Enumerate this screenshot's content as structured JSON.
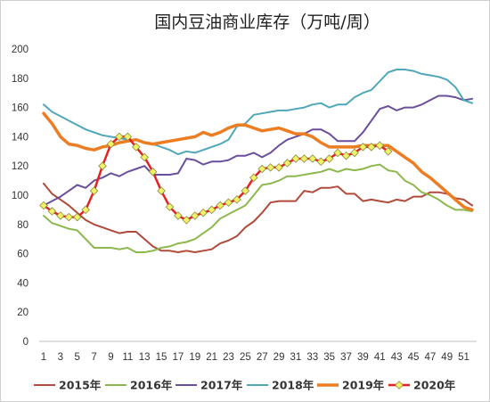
{
  "chart_data": {
    "type": "line",
    "title": "国内豆油商业库存（万吨/周）",
    "xlabel": "",
    "ylabel": "",
    "ylim": [
      0,
      200
    ],
    "yticks": [
      0,
      20,
      40,
      60,
      80,
      100,
      120,
      140,
      160,
      180,
      200
    ],
    "xlim": [
      1,
      52
    ],
    "xticks": [
      1,
      3,
      5,
      7,
      9,
      11,
      13,
      15,
      17,
      19,
      21,
      23,
      25,
      27,
      29,
      31,
      33,
      35,
      37,
      39,
      41,
      43,
      45,
      47,
      49,
      51
    ],
    "grid": false,
    "legend_position": "bottom",
    "series": [
      {
        "name": "2015年",
        "color": "#b04a3a",
        "width": 2,
        "marker": false,
        "x": [
          1,
          2,
          3,
          4,
          5,
          6,
          7,
          8,
          9,
          10,
          11,
          12,
          13,
          14,
          15,
          16,
          17,
          18,
          19,
          20,
          21,
          22,
          23,
          24,
          25,
          26,
          27,
          28,
          29,
          30,
          31,
          32,
          33,
          34,
          35,
          36,
          37,
          38,
          39,
          40,
          41,
          42,
          43,
          44,
          45,
          46,
          47,
          48,
          49,
          50,
          51,
          52
        ],
        "values": [
          108,
          101,
          97,
          93,
          88,
          83,
          80,
          78,
          76,
          74,
          75,
          75,
          70,
          65,
          62,
          62,
          61,
          62,
          61,
          62,
          63,
          67,
          69,
          72,
          78,
          82,
          88,
          95,
          96,
          96,
          96,
          103,
          102,
          105,
          105,
          106,
          101,
          101,
          96,
          97,
          96,
          95,
          97,
          96,
          99,
          99,
          102,
          102,
          101,
          98,
          97,
          93
        ]
      },
      {
        "name": "2016年",
        "color": "#8db84e",
        "width": 2,
        "marker": false,
        "x": [
          1,
          2,
          3,
          4,
          5,
          6,
          7,
          8,
          9,
          10,
          11,
          12,
          13,
          14,
          15,
          16,
          17,
          18,
          19,
          20,
          21,
          22,
          23,
          24,
          25,
          26,
          27,
          28,
          29,
          30,
          31,
          32,
          33,
          34,
          35,
          36,
          37,
          38,
          39,
          40,
          41,
          42,
          43,
          44,
          45,
          46,
          47,
          48,
          49,
          50,
          51,
          52
        ],
        "values": [
          86,
          81,
          79,
          77,
          76,
          70,
          64,
          64,
          64,
          63,
          64,
          61,
          61,
          62,
          64,
          65,
          67,
          68,
          70,
          74,
          78,
          84,
          87,
          90,
          93,
          100,
          107,
          108,
          110,
          113,
          113,
          114,
          115,
          116,
          118,
          116,
          118,
          117,
          118,
          120,
          121,
          117,
          116,
          110,
          107,
          102,
          100,
          97,
          93,
          90,
          90,
          89
        ]
      },
      {
        "name": "2017年",
        "color": "#6a4f9c",
        "width": 2,
        "marker": false,
        "x": [
          1,
          2,
          3,
          4,
          5,
          6,
          7,
          8,
          9,
          10,
          11,
          12,
          13,
          14,
          15,
          16,
          17,
          18,
          19,
          20,
          21,
          22,
          23,
          24,
          25,
          26,
          27,
          28,
          29,
          30,
          31,
          32,
          33,
          34,
          35,
          36,
          37,
          38,
          39,
          40,
          41,
          42,
          43,
          44,
          45,
          46,
          47,
          48,
          49,
          50,
          51,
          52
        ],
        "values": [
          93,
          96,
          99,
          103,
          107,
          105,
          110,
          112,
          115,
          113,
          116,
          118,
          120,
          114,
          114,
          114,
          115,
          125,
          124,
          121,
          123,
          123,
          124,
          127,
          127,
          129,
          126,
          129,
          134,
          138,
          140,
          142,
          145,
          145,
          142,
          137,
          137,
          137,
          143,
          151,
          159,
          161,
          158,
          160,
          160,
          162,
          165,
          168,
          168,
          167,
          165,
          166
        ]
      },
      {
        "name": "2018年",
        "color": "#4fa7b9",
        "width": 2,
        "marker": false,
        "x": [
          1,
          2,
          3,
          4,
          5,
          6,
          7,
          8,
          9,
          10,
          11,
          12,
          13,
          14,
          15,
          16,
          17,
          18,
          19,
          20,
          21,
          22,
          23,
          24,
          25,
          26,
          27,
          28,
          29,
          30,
          31,
          32,
          33,
          34,
          35,
          36,
          37,
          38,
          39,
          40,
          41,
          42,
          43,
          44,
          45,
          46,
          47,
          48,
          49,
          50,
          51,
          52
        ],
        "values": [
          162,
          157,
          154,
          151,
          148,
          145,
          143,
          141,
          140,
          139,
          138,
          138,
          136,
          135,
          133,
          131,
          128,
          130,
          129,
          131,
          133,
          135,
          138,
          147,
          149,
          155,
          156,
          157,
          158,
          158,
          159,
          160,
          162,
          163,
          160,
          162,
          162,
          167,
          170,
          172,
          178,
          184,
          186,
          186,
          185,
          183,
          182,
          181,
          179,
          174,
          165,
          163
        ]
      },
      {
        "name": "2019年",
        "color": "#ed7d22",
        "width": 3.5,
        "marker": false,
        "x": [
          1,
          2,
          3,
          4,
          5,
          6,
          7,
          8,
          9,
          10,
          11,
          12,
          13,
          14,
          15,
          16,
          17,
          18,
          19,
          20,
          21,
          22,
          23,
          24,
          25,
          26,
          27,
          28,
          29,
          30,
          31,
          32,
          33,
          34,
          35,
          36,
          37,
          38,
          39,
          40,
          41,
          42,
          43,
          44,
          45,
          46,
          47,
          48,
          49,
          50,
          51,
          52
        ],
        "values": [
          156,
          149,
          140,
          135,
          134,
          132,
          131,
          133,
          134,
          136,
          137,
          138,
          136,
          135,
          136,
          137,
          138,
          139,
          140,
          143,
          141,
          143,
          146,
          148,
          148,
          146,
          144,
          145,
          146,
          144,
          142,
          142,
          140,
          136,
          133,
          133,
          133,
          133,
          134,
          134,
          134,
          134,
          130,
          126,
          122,
          116,
          112,
          107,
          102,
          97,
          92,
          90
        ]
      },
      {
        "name": "2020年",
        "color": "#e62121",
        "width": 2.5,
        "marker": true,
        "marker_color": "#f2f26a",
        "x": [
          1,
          2,
          3,
          4,
          5,
          6,
          7,
          8,
          9,
          10,
          11,
          12,
          13,
          14,
          15,
          16,
          17,
          18,
          19,
          20,
          21,
          22,
          23,
          24,
          25,
          26,
          27,
          28,
          29,
          30,
          31,
          32,
          33,
          34,
          35,
          36,
          37,
          38,
          39,
          40,
          41,
          42
        ],
        "values": [
          93,
          89,
          86,
          85,
          85,
          90,
          103,
          120,
          135,
          140,
          140,
          133,
          126,
          116,
          103,
          92,
          86,
          83,
          86,
          88,
          90,
          93,
          95,
          97,
          103,
          112,
          118,
          119,
          119,
          122,
          125,
          125,
          125,
          123,
          125,
          129,
          127,
          129,
          133,
          133,
          134,
          130
        ]
      }
    ]
  }
}
